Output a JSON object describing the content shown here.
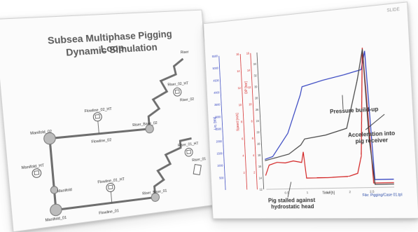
{
  "left_slide": {
    "title_line1": "Subsea Multiphase Pigging Loop",
    "title_line2": "Dynamic Simulation",
    "labels": {
      "manifold_02": "Manifold_02",
      "manifold_01": "Manifold_01",
      "manifold_ht": "Manifold_HT",
      "manifold": "Manifold",
      "flowline_02_ht": "Flowline_02_HT",
      "flowline_02": "Flowline_02",
      "flowline_01_ht": "Flowline_01_HT",
      "flowline_01": "Flowline_01",
      "riser_base_02": "Riser_Base_02",
      "riser_base_01": "Riser_Base_01",
      "riser_02_ht": "Riser_02_HT",
      "riser_01_ht": "Riser_01_HT",
      "riser_02": "Riser_02",
      "riser_01": "Riser_01",
      "riser": "Riser"
    }
  },
  "right_slide": {
    "slide_tag": "SLIDE",
    "axis_left_blue_label": "Liq. [bbl]",
    "axis_left_red_label": "Speed [m/s]",
    "axis_mid_red_label": "DP [bar]",
    "x_axis_label": "Time [h]",
    "corner_note": "File: Pigging/Case 01.tpl",
    "callouts": {
      "pressure": "Pressure build-up",
      "acceleration_line1": "Acceleration into",
      "acceleration_line2": "pig receiver",
      "stall_line1": "Pig stalled against",
      "stall_line2": "hydrostatic head"
    }
  },
  "chart_data": {
    "type": "line",
    "xlabel": "Time [h]",
    "xlim": [
      0,
      3
    ],
    "x_ticks": [
      "0.5",
      "1",
      "1.5",
      "2",
      "2.5"
    ],
    "y_axes": [
      {
        "color": "#2f3fbf",
        "label": "Liq. [bbl]",
        "range": [
          0,
          5500
        ],
        "ticks": [
          "500",
          "1000",
          "1500",
          "2000",
          "2500",
          "3000",
          "3500",
          "4000",
          "4500",
          "5000",
          "5500"
        ]
      },
      {
        "color": "#d22020",
        "label": "Speed [m/s]",
        "range": [
          0,
          16
        ],
        "ticks": [
          "2",
          "4",
          "6",
          "8",
          "10",
          "12",
          "14",
          "16"
        ]
      },
      {
        "color": "#d22020",
        "label": "DP [bar]",
        "range": [
          0,
          16
        ],
        "ticks": [
          "2",
          "4",
          "6",
          "8",
          "10",
          "12",
          "14",
          "16"
        ]
      },
      {
        "color": "#444444",
        "label": "",
        "range": [
          12,
          36
        ],
        "ticks": [
          "12",
          "14",
          "16",
          "18",
          "20",
          "22",
          "24",
          "26",
          "28",
          "30",
          "32",
          "34"
        ]
      }
    ],
    "series": [
      {
        "color": "#2f3fbf",
        "axis": 0,
        "x": [
          0,
          0.2,
          0.6,
          0.95,
          1.0,
          1.5,
          2.0,
          2.4,
          2.5,
          2.58,
          3.0
        ],
        "y": [
          1200,
          1300,
          2200,
          3700,
          4000,
          4200,
          4350,
          4500,
          5200,
          300,
          300
        ]
      },
      {
        "color": "#d22020",
        "axis": 1,
        "x": [
          0,
          0.1,
          0.3,
          0.5,
          0.7,
          0.9,
          0.95,
          1.0,
          1.5,
          2.0,
          2.2,
          2.3,
          2.45,
          2.55,
          3.0
        ],
        "y": [
          1.6,
          2.8,
          3.1,
          3.0,
          3.2,
          3.0,
          4.2,
          1.2,
          1.2,
          1.3,
          1.6,
          3.5,
          15.5,
          0.5,
          0.5
        ]
      },
      {
        "color": "#444444",
        "axis": 3,
        "x": [
          0,
          0.3,
          0.6,
          0.9,
          1.0,
          1.5,
          2.0,
          2.3,
          2.45,
          2.5,
          2.58,
          3.0
        ],
        "y": [
          17,
          17.5,
          18,
          19.5,
          20.5,
          21,
          22,
          30,
          35,
          20,
          12.5,
          12.5
        ]
      }
    ]
  }
}
